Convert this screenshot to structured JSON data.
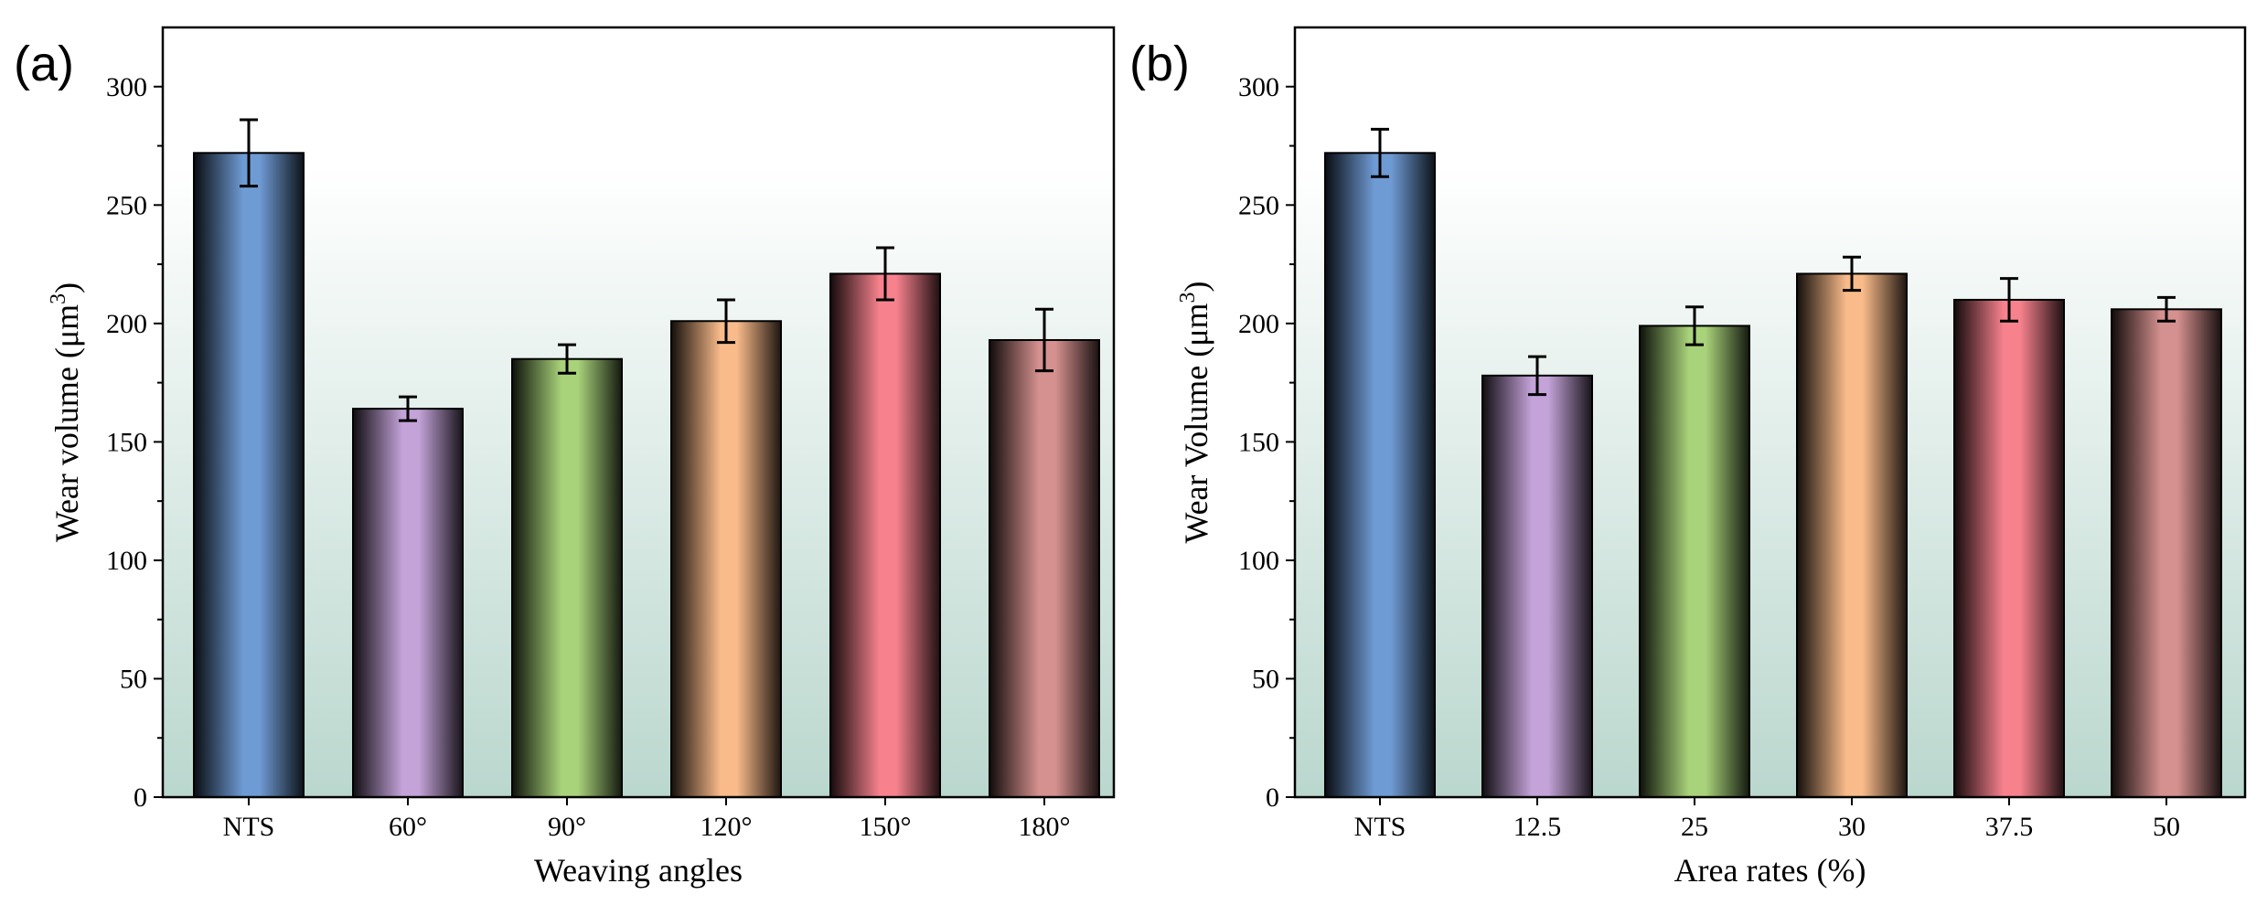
{
  "chart_data": [
    {
      "type": "bar",
      "panel_label": "(a)",
      "title": "",
      "xlabel": "Weaving angles",
      "ylabel_main": "Wear volume (μm",
      "ylabel_sup": "3",
      "ylabel_end": ")",
      "categories": [
        "NTS",
        "60°",
        "90°",
        "120°",
        "150°",
        "180°"
      ],
      "values": [
        272,
        164,
        185,
        201,
        221,
        193
      ],
      "errors": [
        14,
        5,
        6,
        9,
        11,
        13
      ],
      "ylim": [
        0,
        325
      ],
      "yticks": [
        "0",
        "50",
        "100",
        "150",
        "200",
        "250",
        "300"
      ],
      "grid": false
    },
    {
      "type": "bar",
      "panel_label": "(b)",
      "title": "",
      "xlabel": "Area rates (%)",
      "ylabel_main": "Wear Volume (μm",
      "ylabel_sup": "3",
      "ylabel_end": ")",
      "categories": [
        "NTS",
        "12.5",
        "25",
        "30",
        "37.5",
        "50"
      ],
      "values": [
        272,
        178,
        199,
        221,
        210,
        206
      ],
      "errors": [
        10,
        8,
        8,
        7,
        9,
        5
      ],
      "ylim": [
        0,
        325
      ],
      "yticks": [
        "0",
        "50",
        "100",
        "150",
        "200",
        "250",
        "300"
      ],
      "grid": false
    }
  ],
  "bar_colors": [
    "#6f9bd4",
    "#c4a3d9",
    "#a9d37a",
    "#f9bb8a",
    "#f7828e",
    "#d5918f"
  ],
  "background_gradient": [
    "#ffffff",
    "#bad7ce"
  ]
}
